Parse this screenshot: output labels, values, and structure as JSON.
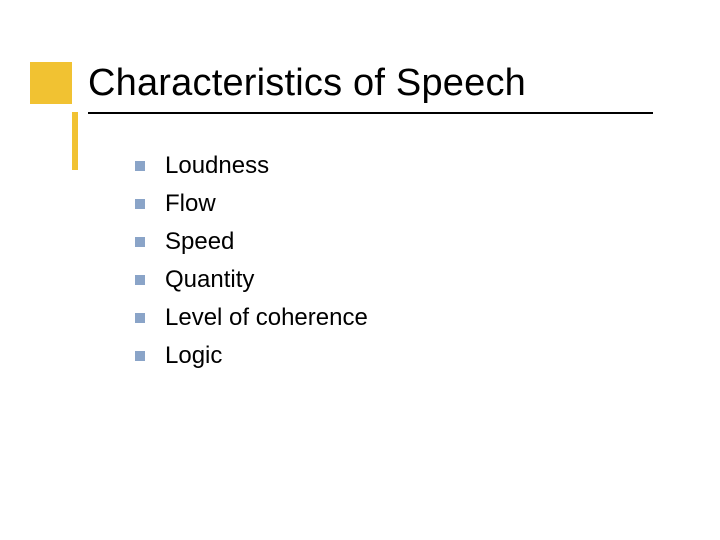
{
  "slide": {
    "title": "Characteristics of Speech",
    "title_color": "#000000",
    "title_fontsize": 38,
    "underline_color": "#000000",
    "accent_color": "#f1c232",
    "background_color": "#ffffff",
    "bullets": {
      "marker_color": "#8aa4c8",
      "marker_size": 10,
      "text_color": "#000000",
      "text_fontsize": 24,
      "items": [
        {
          "label": "Loudness"
        },
        {
          "label": "Flow"
        },
        {
          "label": "Speed"
        },
        {
          "label": "Quantity"
        },
        {
          "label": "Level of coherence"
        },
        {
          "label": "Logic"
        }
      ]
    }
  }
}
